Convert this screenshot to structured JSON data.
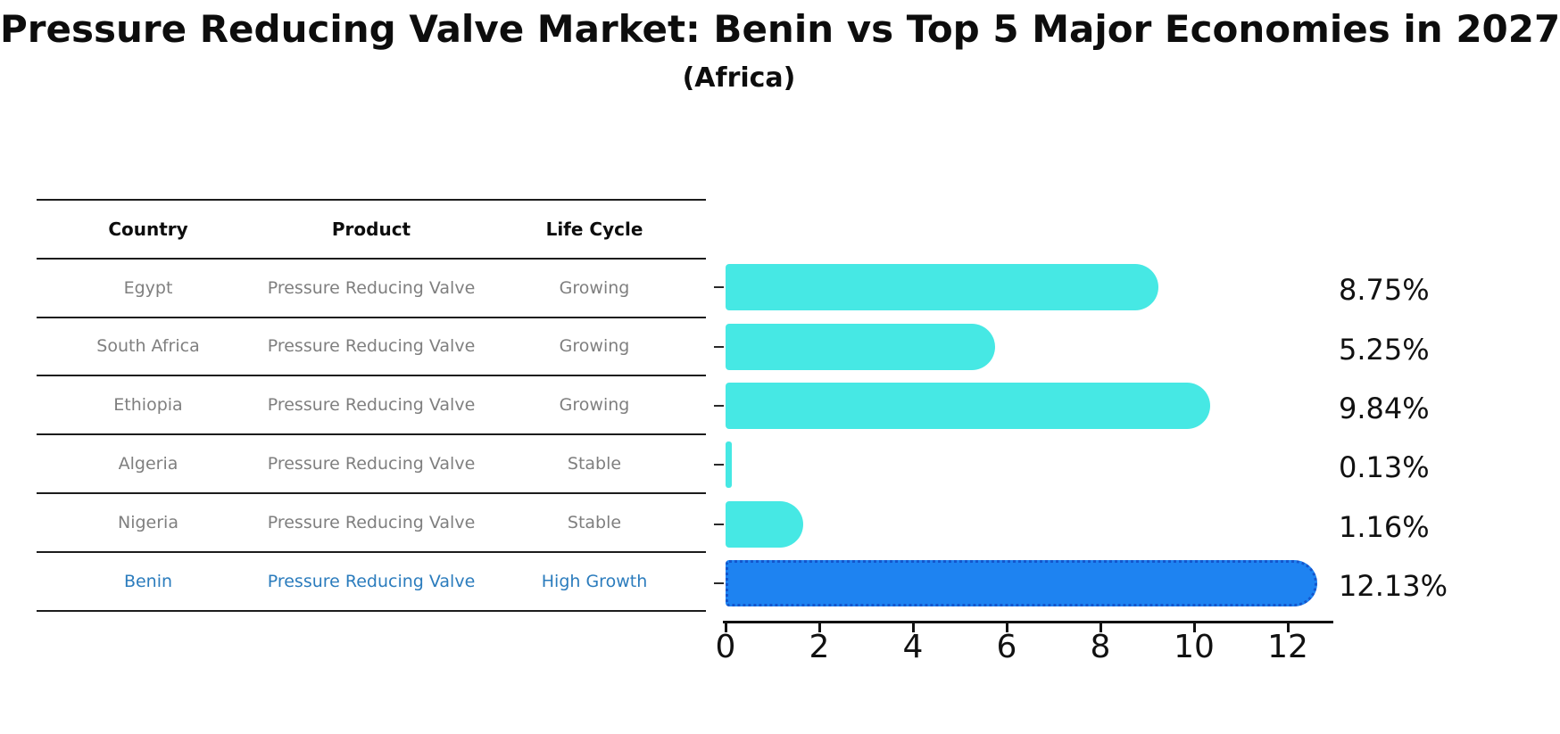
{
  "title": "Pressure Reducing Valve Market: Benin vs Top 5 Major Economies in 2027",
  "subtitle": "(Africa)",
  "table": {
    "headers": [
      "Country",
      "Product",
      "Life Cycle"
    ],
    "rows": [
      {
        "country": "Egypt",
        "product": "Pressure Reducing Valve",
        "life_cycle": "Growing"
      },
      {
        "country": "South Africa",
        "product": "Pressure Reducing Valve",
        "life_cycle": "Growing"
      },
      {
        "country": "Ethiopia",
        "product": "Pressure Reducing Valve",
        "life_cycle": "Growing"
      },
      {
        "country": "Algeria",
        "product": "Pressure Reducing Valve",
        "life_cycle": "Stable"
      },
      {
        "country": "Nigeria",
        "product": "Pressure Reducing Valve",
        "life_cycle": "Stable"
      },
      {
        "country": "Benin",
        "product": "Pressure Reducing Valve",
        "life_cycle": "High Growth"
      }
    ]
  },
  "chart_data": {
    "type": "bar",
    "orientation": "horizontal",
    "title": "Pressure Reducing Valve Market: Benin vs Top 5 Major Economies in 2027",
    "subtitle": "(Africa)",
    "categories": [
      "Egypt",
      "South Africa",
      "Ethiopia",
      "Algeria",
      "Nigeria",
      "Benin"
    ],
    "values": [
      8.75,
      5.25,
      9.84,
      0.13,
      1.16,
      12.13
    ],
    "value_labels": [
      "8.75%",
      "5.25%",
      "9.84%",
      "0.13%",
      "1.16%",
      "12.13%"
    ],
    "x_ticks": [
      0,
      2,
      4,
      6,
      8,
      10,
      12
    ],
    "x_tick_labels": [
      "0",
      "2",
      "4",
      "6",
      "8",
      "10",
      "12"
    ],
    "xlim": [
      0,
      12.9
    ],
    "grid": false,
    "legend": "none",
    "highlight_index": 5,
    "colors": {
      "default_bar": "#46E8E4",
      "highlight_bar": "#1E83F1",
      "highlight_border": "#1456CC",
      "row_text": "#7f7f7f",
      "highlight_text": "#2b7cbd",
      "axis_text": "#111111"
    }
  }
}
